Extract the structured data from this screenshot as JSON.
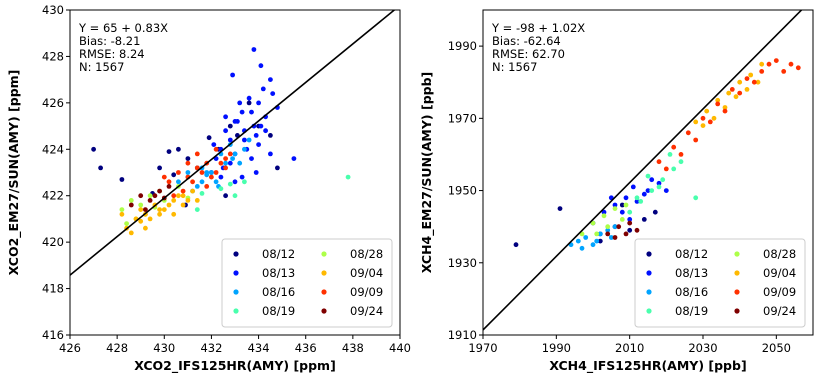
{
  "legend_colors": {
    "08/12": "#00007f",
    "08/13": "#0010ff",
    "08/16": "#00a4ff",
    "08/19": "#49ffad",
    "08/28": "#adff49",
    "09/04": "#ffb900",
    "09/09": "#ff3000",
    "09/24": "#7f0000"
  },
  "chart_data": [
    {
      "type": "scatter",
      "title": "",
      "xlabel": "XCO2_IFS125HR(AMY) [ppm]",
      "ylabel": "XCO2_EM27/SUN(AMY) [ppm]",
      "xlim": [
        426,
        440
      ],
      "ylim": [
        416,
        430
      ],
      "xticks": [
        "426",
        "428",
        "430",
        "432",
        "434",
        "436",
        "438",
        "440"
      ],
      "yticks": [
        "416",
        "418",
        "420",
        "422",
        "424",
        "426",
        "428",
        "430"
      ],
      "regression": {
        "intercept": 65,
        "slope": 0.83
      },
      "stats": [
        "Y = 65 + 0.83X",
        "Bias: -8.21",
        "RMSE: 8.24",
        "N: 1567"
      ],
      "legend_location": "lower-right",
      "legend": [
        "08/12",
        "08/13",
        "08/16",
        "08/19",
        "08/28",
        "09/04",
        "09/09",
        "09/24"
      ],
      "series": [
        {
          "name": "08/12",
          "x": [
            427.0,
            427.3,
            428.2,
            429.8,
            430.2,
            430.6,
            431.0,
            431.4,
            431.9,
            432.3,
            432.8,
            433.1,
            433.6,
            434.0,
            434.5,
            430.4,
            429.5,
            430.9,
            432.6,
            434.8
          ],
          "y": [
            424.0,
            423.2,
            422.7,
            423.2,
            423.9,
            424.0,
            423.6,
            423.2,
            424.5,
            424.0,
            425.0,
            424.6,
            426.0,
            425.0,
            424.6,
            422.9,
            422.1,
            421.6,
            422.0,
            423.2
          ]
        },
        {
          "name": "08/13",
          "x": [
            432.0,
            432.4,
            432.8,
            433.1,
            433.4,
            433.7,
            434.0,
            434.3,
            434.6,
            432.2,
            432.6,
            433.0,
            433.3,
            433.6,
            433.9,
            434.2,
            434.5,
            434.8,
            432.9,
            433.2,
            433.5,
            433.8,
            434.1,
            432.1,
            432.5,
            433.0,
            433.4,
            433.7,
            434.0,
            434.3,
            433.8,
            434.1,
            435.5,
            433.0,
            432.6,
            433.3,
            433.9,
            434.5,
            432.4,
            432.8
          ],
          "y": [
            423.0,
            424.0,
            424.4,
            425.2,
            424.8,
            425.6,
            426.0,
            425.4,
            426.4,
            423.6,
            424.8,
            423.8,
            425.6,
            426.2,
            424.6,
            426.6,
            427.0,
            425.8,
            427.2,
            426.0,
            424.0,
            428.3,
            425.0,
            424.2,
            423.2,
            422.6,
            424.4,
            423.6,
            424.2,
            424.8,
            425.0,
            427.6,
            423.6,
            425.2,
            425.4,
            422.8,
            423.0,
            423.8,
            422.8,
            423.4
          ]
        },
        {
          "name": "08/16",
          "x": [
            430.6,
            431.0,
            431.4,
            431.8,
            432.2,
            432.6,
            433.0,
            433.4,
            431.2,
            431.6,
            432.0,
            432.4,
            432.8,
            433.2,
            431.0,
            431.6,
            432.3,
            432.9,
            433.6,
            431.8
          ],
          "y": [
            422.6,
            422.8,
            422.4,
            423.0,
            422.6,
            423.4,
            423.8,
            424.0,
            422.2,
            423.2,
            423.0,
            423.8,
            424.2,
            423.4,
            423.0,
            422.6,
            422.4,
            423.6,
            424.4,
            422.9
          ]
        },
        {
          "name": "08/19",
          "x": [
            433.0,
            433.4,
            437.8,
            431.4,
            432.4,
            431.6,
            432.8
          ],
          "y": [
            422.0,
            422.6,
            422.8,
            421.4,
            422.3,
            422.1,
            422.5
          ]
        },
        {
          "name": "08/28",
          "x": [
            428.2,
            428.6,
            429.0,
            429.4,
            429.8,
            428.8,
            429.2,
            429.6,
            430.0,
            428.4,
            430.6,
            431.0
          ],
          "y": [
            421.4,
            421.8,
            421.6,
            422.0,
            422.2,
            421.0,
            421.2,
            421.5,
            421.8,
            420.8,
            422.4,
            421.9
          ]
        },
        {
          "name": "09/04",
          "x": [
            428.4,
            428.8,
            429.2,
            429.6,
            430.0,
            430.4,
            430.8,
            431.2,
            428.6,
            429.0,
            429.4,
            429.8,
            430.2,
            430.6,
            431.0,
            429.2,
            429.8,
            430.4,
            428.2,
            429.0,
            430.8,
            431.4
          ],
          "y": [
            420.6,
            421.0,
            421.2,
            421.6,
            421.4,
            421.8,
            422.0,
            422.2,
            420.4,
            420.9,
            421.0,
            421.2,
            421.6,
            422.0,
            421.8,
            420.6,
            421.4,
            421.2,
            421.2,
            421.4,
            421.6,
            421.8
          ]
        },
        {
          "name": "09/09",
          "x": [
            430.2,
            430.6,
            431.0,
            431.4,
            431.8,
            432.2,
            432.6,
            430.8,
            431.2,
            431.6,
            432.0,
            432.4,
            430.4,
            431.4,
            432.2,
            432.8,
            430.0,
            431.0,
            431.8,
            432.6
          ],
          "y": [
            422.6,
            423.0,
            422.8,
            423.2,
            423.4,
            423.0,
            423.6,
            422.2,
            422.6,
            423.0,
            422.8,
            423.4,
            422.0,
            423.8,
            424.0,
            423.8,
            422.8,
            423.4,
            422.4,
            423.2
          ]
        },
        {
          "name": "09/24",
          "x": [
            428.6,
            429.0,
            429.4,
            429.8,
            430.2,
            429.2,
            429.6,
            430.0
          ],
          "y": [
            421.6,
            422.0,
            421.8,
            422.2,
            422.4,
            421.4,
            422.0,
            421.9
          ]
        }
      ]
    },
    {
      "type": "scatter",
      "title": "",
      "xlabel": "XCH4_IFS125HR(AMY) [ppb]",
      "ylabel": "XCH4_EM27/SUN(AMY) [ppb]",
      "xlim": [
        1970,
        2060
      ],
      "ylim": [
        1910,
        2000
      ],
      "xticks": [
        "1970",
        "1990",
        "2010",
        "2030",
        "2050"
      ],
      "yticks": [
        "1910",
        "1930",
        "1950",
        "1970",
        "1990"
      ],
      "regression": {
        "intercept": -98,
        "slope": 1.02
      },
      "stats": [
        "Y = -98 + 1.02X",
        "Bias: -62.64",
        "RMSE: 62.70",
        "N: 1567"
      ],
      "legend_location": "lower-right",
      "legend": [
        "08/12",
        "08/13",
        "08/16",
        "08/19",
        "08/28",
        "09/04",
        "09/09",
        "09/24"
      ],
      "series": [
        {
          "name": "08/12",
          "x": [
            1979,
            1991,
            2008,
            2010,
            2014,
            2017,
            2002,
            2006
          ],
          "y": [
            1935,
            1945,
            1946,
            1939,
            1942,
            1944,
            1936,
            1940
          ]
        },
        {
          "name": "08/13",
          "x": [
            2000,
            2003,
            2006,
            2009,
            2012,
            2015,
            2018,
            2005,
            2011,
            2016,
            2020,
            2008,
            2014,
            2002,
            2010
          ],
          "y": [
            1941,
            1944,
            1946,
            1948,
            1947,
            1950,
            1952,
            1948,
            1951,
            1953,
            1950,
            1944,
            1949,
            1938,
            1942
          ]
        },
        {
          "name": "08/16",
          "x": [
            1994,
            1996,
            1998,
            2000,
            2002,
            2004,
            2006,
            1997,
            2001,
            2005
          ],
          "y": [
            1935,
            1936,
            1937,
            1935,
            1938,
            1939,
            1940,
            1934,
            1936,
            1937
          ]
        },
        {
          "name": "08/19",
          "x": [
            2010,
            2013,
            2016,
            2019,
            2022,
            2012,
            2018,
            2024,
            2015,
            2021,
            2028
          ],
          "y": [
            1944,
            1947,
            1950,
            1953,
            1956,
            1948,
            1951,
            1958,
            1954,
            1960,
            1948
          ]
        },
        {
          "name": "08/28",
          "x": [
            1997,
            2000,
            2003,
            2006,
            2009,
            2001,
            2004,
            2008
          ],
          "y": [
            1938,
            1941,
            1943,
            1945,
            1946,
            1938,
            1940,
            1942
          ]
        },
        {
          "name": "09/04",
          "x": [
            2028,
            2031,
            2034,
            2037,
            2040,
            2043,
            2046,
            2033,
            2039,
            2045,
            2030,
            2036,
            2042
          ],
          "y": [
            1969,
            1972,
            1975,
            1977,
            1980,
            1982,
            1985,
            1970,
            1976,
            1980,
            1968,
            1973,
            1978
          ]
        },
        {
          "name": "09/09",
          "x": [
            2018,
            2022,
            2026,
            2030,
            2034,
            2038,
            2042,
            2046,
            2050,
            2054,
            2024,
            2032,
            2040,
            2048,
            2052,
            2020,
            2028,
            2036,
            2044,
            2056
          ],
          "y": [
            1958,
            1962,
            1966,
            1970,
            1974,
            1978,
            1981,
            1983,
            1986,
            1985,
            1960,
            1969,
            1977,
            1985,
            1983,
            1956,
            1964,
            1972,
            1980,
            1984
          ]
        },
        {
          "name": "09/24",
          "x": [
            2004,
            2007,
            2010,
            2012,
            2006,
            2009
          ],
          "y": [
            1938,
            1940,
            1941,
            1939,
            1937,
            1938
          ]
        }
      ]
    }
  ]
}
